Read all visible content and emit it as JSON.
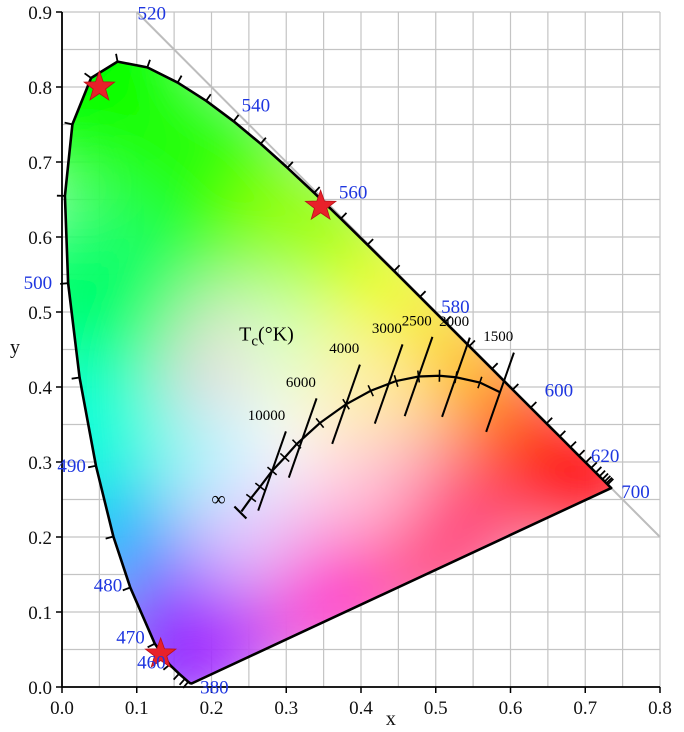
{
  "chart_data": {
    "type": "scatter",
    "title": "",
    "xlabel": "x",
    "ylabel": "y",
    "xlim": [
      0,
      0.8
    ],
    "ylim": [
      0,
      0.9
    ],
    "grid": true,
    "x_ticks": [
      "0.0",
      "0.1",
      "0.2",
      "0.3",
      "0.4",
      "0.5",
      "0.6",
      "0.7",
      "0.8"
    ],
    "y_ticks": [
      "0.0",
      "0.1",
      "0.2",
      "0.3",
      "0.4",
      "0.5",
      "0.6",
      "0.7",
      "0.8",
      "0.9"
    ],
    "spectral_locus": [
      [
        0.1741,
        0.005
      ],
      [
        0.1738,
        0.0049
      ],
      [
        0.1733,
        0.0048
      ],
      [
        0.1726,
        0.0048
      ],
      [
        0.1714,
        0.0051
      ],
      [
        0.1689,
        0.0069
      ],
      [
        0.1644,
        0.0109
      ],
      [
        0.1566,
        0.0177
      ],
      [
        0.144,
        0.0297
      ],
      [
        0.1241,
        0.0578
      ],
      [
        0.0913,
        0.1327
      ],
      [
        0.0687,
        0.2007
      ],
      [
        0.0454,
        0.295
      ],
      [
        0.0235,
        0.4127
      ],
      [
        0.0082,
        0.5384
      ],
      [
        0.0039,
        0.6548
      ],
      [
        0.0139,
        0.7502
      ],
      [
        0.0389,
        0.812
      ],
      [
        0.0743,
        0.8338
      ],
      [
        0.1142,
        0.8262
      ],
      [
        0.1547,
        0.8059
      ],
      [
        0.1929,
        0.7816
      ],
      [
        0.2296,
        0.7543
      ],
      [
        0.2658,
        0.7243
      ],
      [
        0.3016,
        0.6923
      ],
      [
        0.3373,
        0.6589
      ],
      [
        0.3731,
        0.6245
      ],
      [
        0.4087,
        0.5896
      ],
      [
        0.4441,
        0.5547
      ],
      [
        0.4788,
        0.5202
      ],
      [
        0.5125,
        0.4866
      ],
      [
        0.5448,
        0.4544
      ],
      [
        0.5752,
        0.4242
      ],
      [
        0.6029,
        0.3965
      ],
      [
        0.627,
        0.3725
      ],
      [
        0.6482,
        0.3514
      ],
      [
        0.6658,
        0.334
      ],
      [
        0.6801,
        0.3197
      ],
      [
        0.6915,
        0.3083
      ],
      [
        0.7006,
        0.2993
      ],
      [
        0.7079,
        0.292
      ],
      [
        0.714,
        0.2859
      ],
      [
        0.719,
        0.2809
      ],
      [
        0.723,
        0.277
      ],
      [
        0.726,
        0.274
      ],
      [
        0.7283,
        0.2717
      ],
      [
        0.73,
        0.27
      ],
      [
        0.7311,
        0.2689
      ],
      [
        0.732,
        0.268
      ],
      [
        0.7327,
        0.2673
      ],
      [
        0.7334,
        0.2666
      ],
      [
        0.734,
        0.266
      ],
      [
        0.7344,
        0.2656
      ],
      [
        0.7346,
        0.2654
      ],
      [
        0.7347,
        0.2653
      ]
    ],
    "wavelength_labels": [
      {
        "text": "380",
        "x": 0.1741,
        "y": 0.005
      },
      {
        "text": "460",
        "x": 0.144,
        "y": 0.0297
      },
      {
        "text": "470",
        "x": 0.1241,
        "y": 0.0578
      },
      {
        "text": "480",
        "x": 0.0913,
        "y": 0.1327
      },
      {
        "text": "490",
        "x": 0.0454,
        "y": 0.295
      },
      {
        "text": "500",
        "x": 0.0082,
        "y": 0.5384
      },
      {
        "text": "520",
        "x": 0.0743,
        "y": 0.8338
      },
      {
        "text": "540",
        "x": 0.2296,
        "y": 0.7543
      },
      {
        "text": "560",
        "x": 0.3731,
        "y": 0.6245
      },
      {
        "text": "580",
        "x": 0.5125,
        "y": 0.4866
      },
      {
        "text": "600",
        "x": 0.627,
        "y": 0.3725
      },
      {
        "text": "620",
        "x": 0.6915,
        "y": 0.3083
      },
      {
        "text": "700",
        "x": 0.7347,
        "y": 0.2653
      }
    ],
    "planckian_locus": {
      "title": "T",
      "title_sub": "c",
      "title_unit": "(°K)",
      "points": [
        [
          0.24,
          0.234
        ],
        [
          0.253,
          0.252
        ],
        [
          0.265,
          0.267
        ],
        [
          0.281,
          0.288
        ],
        [
          0.298,
          0.306
        ],
        [
          0.314,
          0.324
        ],
        [
          0.345,
          0.352
        ],
        [
          0.38,
          0.377
        ],
        [
          0.413,
          0.395
        ],
        [
          0.447,
          0.408
        ],
        [
          0.477,
          0.414
        ],
        [
          0.505,
          0.415
        ],
        [
          0.527,
          0.413
        ],
        [
          0.559,
          0.406
        ],
        [
          0.586,
          0.393
        ]
      ],
      "terminal_label": "∞",
      "isotherms": [
        {
          "label": "10000",
          "x": 0.281,
          "y": 0.288
        },
        {
          "label": "6000",
          "x": 0.322,
          "y": 0.332
        },
        {
          "label": "4000",
          "x": 0.38,
          "y": 0.377
        },
        {
          "label": "3000",
          "x": 0.437,
          "y": 0.404
        },
        {
          "label": "2500",
          "x": 0.477,
          "y": 0.414
        },
        {
          "label": "2000",
          "x": 0.527,
          "y": 0.413
        },
        {
          "label": "1500",
          "x": 0.586,
          "y": 0.393
        }
      ]
    },
    "markers": [
      {
        "x": 0.05,
        "y": 0.8
      },
      {
        "x": 0.346,
        "y": 0.641
      },
      {
        "x": 0.132,
        "y": 0.044
      }
    ],
    "colors": {
      "grid": "#c4c4c4",
      "axis": "#000000",
      "wavelength_label": "#1e36e0",
      "marker": "#e8212a",
      "diagonal": "#bdbdbd"
    }
  }
}
